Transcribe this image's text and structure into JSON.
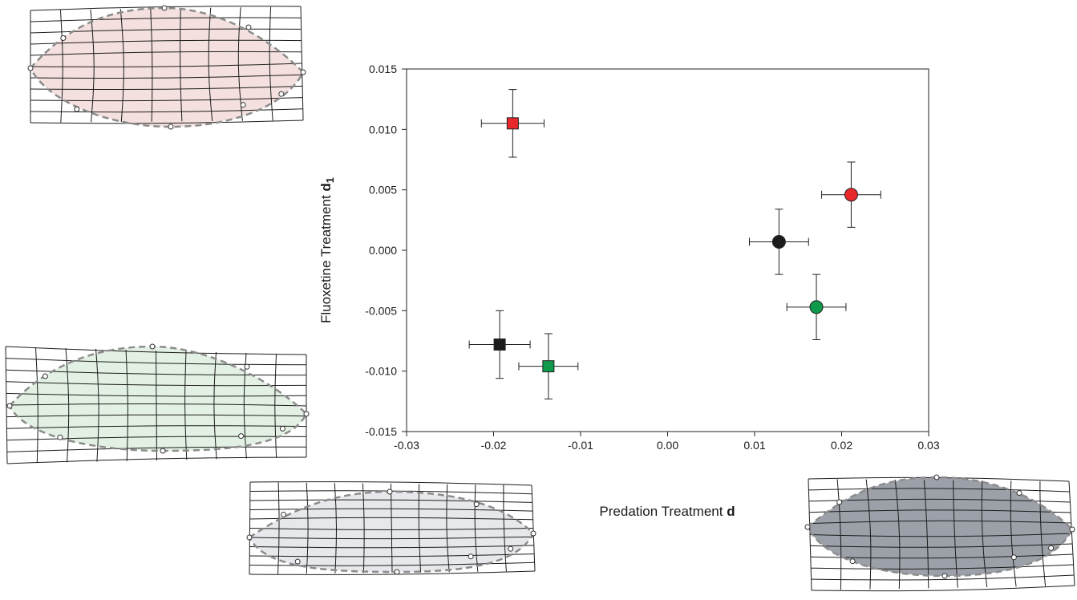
{
  "chart_data": {
    "type": "scatter",
    "title": "",
    "xlabel": "Predation Treatment ",
    "xlabel_bold": "d",
    "ylabel": "Fluoxetine Treatment ",
    "ylabel_bold": "d",
    "ylabel_bold_sub": "1",
    "xlim": [
      -0.03,
      0.03
    ],
    "ylim": [
      -0.015,
      0.015
    ],
    "x_ticks": [
      -0.03,
      -0.02,
      -0.01,
      0.0,
      0.01,
      0.02,
      0.03
    ],
    "x_tick_labels": [
      "-0.03",
      "-0.02",
      "-0.01",
      "0.00",
      "0.01",
      "0.02",
      "0.03"
    ],
    "y_ticks": [
      -0.015,
      -0.01,
      -0.005,
      0.0,
      0.005,
      0.01,
      0.015
    ],
    "y_tick_labels": [
      "-0.015",
      "-0.010",
      "-0.005",
      "0.000",
      "0.005",
      "0.010",
      "0.015"
    ],
    "grid": false,
    "points": [
      {
        "x": -0.0178,
        "y": 0.0105,
        "xerr": 0.0036,
        "yerr": 0.0028,
        "marker": "square",
        "color": "#e8282b"
      },
      {
        "x": -0.0193,
        "y": -0.0078,
        "xerr": 0.0035,
        "yerr": 0.0028,
        "marker": "square",
        "color": "#1c1c1c"
      },
      {
        "x": -0.0137,
        "y": -0.0096,
        "xerr": 0.0034,
        "yerr": 0.0027,
        "marker": "square",
        "color": "#0e9a4a"
      },
      {
        "x": 0.0128,
        "y": 0.0007,
        "xerr": 0.0034,
        "yerr": 0.0027,
        "marker": "circle",
        "color": "#1c1c1c"
      },
      {
        "x": 0.0211,
        "y": 0.0046,
        "xerr": 0.0034,
        "yerr": 0.0027,
        "marker": "circle",
        "color": "#e8282b"
      },
      {
        "x": 0.0171,
        "y": -0.0047,
        "xerr": 0.0034,
        "yerr": 0.0027,
        "marker": "circle",
        "color": "#0e9a4a"
      }
    ]
  },
  "shape_grids": [
    {
      "name": "red-shape",
      "fill": "#f4e1df",
      "outline": "#8c8c8c"
    },
    {
      "name": "green-shape",
      "fill": "#e3f1e4",
      "outline": "#8c8c8c"
    },
    {
      "name": "gray-shape",
      "fill": "#e7e8ec",
      "outline": "#8c8c8c"
    },
    {
      "name": "dark-shape",
      "fill": "#9ca0a8",
      "outline": "#8c8c8c"
    }
  ]
}
